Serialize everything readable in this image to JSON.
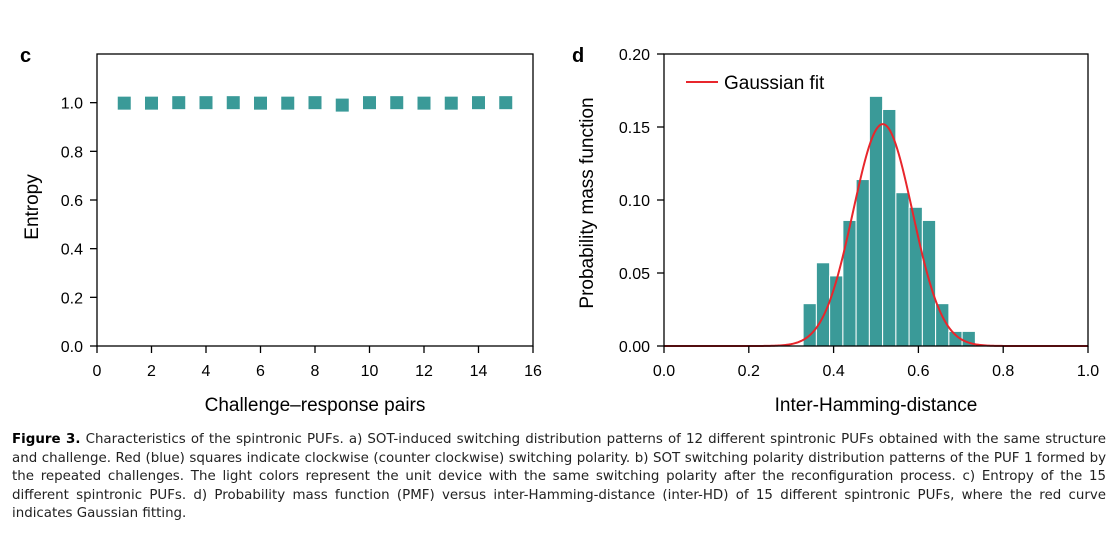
{
  "caption": {
    "label": "Figure 3.",
    "text": "Characteristics of the spintronic PUFs. a) SOT-induced switching distribution patterns of 12 different spintronic PUFs obtained with the same structure and challenge. Red (blue) squares indicate clockwise (counter clockwise) switching polarity. b) SOT switching polarity distribution patterns of the PUF 1 formed by the repeated challenges. The light colors represent the unit device with the same switching polarity after the reconfiguration process. c) Entropy of the 15 different spintronic PUFs. d) Probability mass function (PMF) versus inter-Hamming-distance (inter-HD) of 15 different spintronic PUFs, where the red curve indicates Gaussian fitting."
  },
  "colors": {
    "teal": "#3a9a98",
    "red": "#e8262c"
  },
  "chart_data": [
    {
      "panel": "c",
      "type": "scatter",
      "title": "",
      "xlabel": "Challenge–response pairs",
      "ylabel": "Entropy",
      "xlim": [
        0,
        16
      ],
      "ylim": [
        0,
        1.2
      ],
      "x_ticks": [
        "0",
        "2",
        "4",
        "6",
        "8",
        "10",
        "12",
        "14",
        "16"
      ],
      "y_ticks": [
        "0.0",
        "0.2",
        "0.4",
        "0.6",
        "0.8",
        "1.0"
      ],
      "x": [
        1,
        2,
        3,
        4,
        5,
        6,
        7,
        8,
        9,
        10,
        11,
        12,
        13,
        14,
        15
      ],
      "values": [
        0.998,
        0.998,
        1.0,
        1.0,
        1.0,
        0.998,
        0.998,
        1.0,
        0.99,
        1.0,
        1.0,
        0.998,
        0.998,
        1.0,
        1.0
      ],
      "marker": "square"
    },
    {
      "panel": "d",
      "type": "bar",
      "title": "",
      "xlabel": "Inter-Hamming-distance",
      "ylabel": "Probability mass function",
      "xlim": [
        0,
        1.0
      ],
      "ylim": [
        0,
        0.2
      ],
      "x_ticks": [
        "0.0",
        "0.2",
        "0.4",
        "0.6",
        "0.8",
        "1.0"
      ],
      "y_ticks": [
        "0.00",
        "0.05",
        "0.10",
        "0.15",
        "0.20"
      ],
      "bin_width": 0.03125,
      "bin_starts": [
        0.3281,
        0.3594,
        0.3906,
        0.4219,
        0.4531,
        0.4844,
        0.5156,
        0.5469,
        0.5781,
        0.6094,
        0.6406,
        0.6719,
        0.7031
      ],
      "values": [
        0.029,
        0.057,
        0.048,
        0.086,
        0.114,
        0.171,
        0.162,
        0.105,
        0.095,
        0.086,
        0.029,
        0.01,
        0.01
      ],
      "legend": [
        "Gaussian fit"
      ],
      "legend_position": "top-left",
      "fit": {
        "name": "Gaussian fit",
        "mean": 0.516,
        "sigma": 0.07,
        "peak": 0.152
      }
    }
  ]
}
